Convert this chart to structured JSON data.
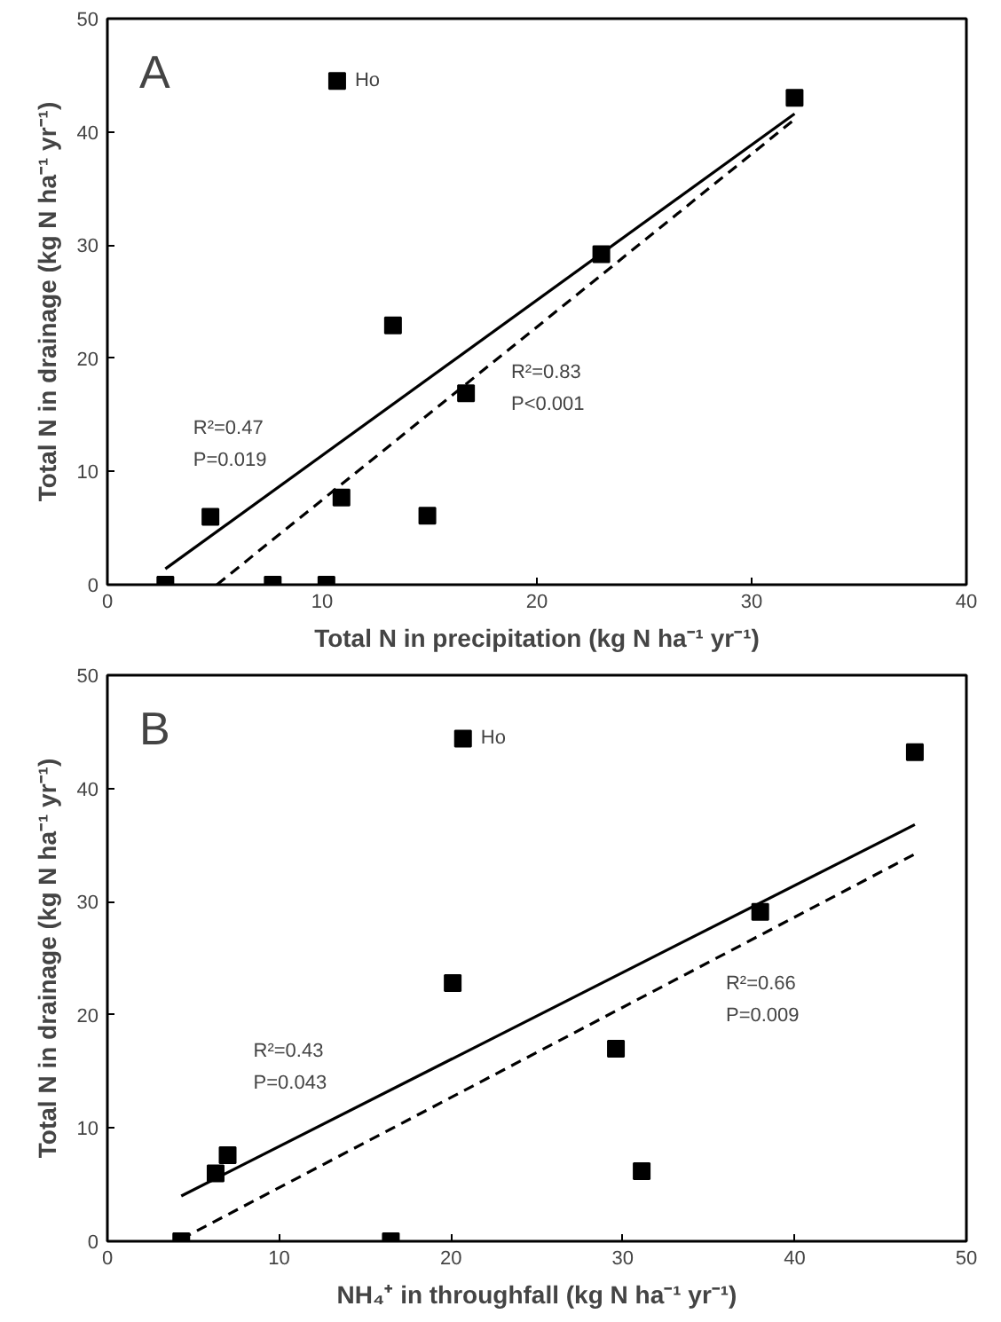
{
  "chart_data": [
    {
      "type": "scatter",
      "title": "A",
      "xlabel": "Total N in precipitation (kg N ha⁻¹ yr⁻¹)",
      "ylabel": "Total N in drainage (kg N ha⁻¹ yr⁻¹)",
      "xlim": [
        0,
        40
      ],
      "ylim": [
        0,
        50
      ],
      "xticks": [
        0,
        10,
        20,
        30,
        40
      ],
      "yticks": [
        0,
        10,
        20,
        30,
        40,
        50
      ],
      "grid": false,
      "marker": "square",
      "series": [
        {
          "color": "#000000",
          "x": [
            2.7,
            4.8,
            7.7,
            10.2,
            10.7,
            10.9,
            13.3,
            14.9,
            16.7,
            23.0,
            32.0
          ],
          "values": [
            0,
            6.0,
            0,
            0,
            44.5,
            7.7,
            22.9,
            6.1,
            16.9,
            29.2,
            43.0
          ]
        },
        {
          "type": "line",
          "color": "#000000",
          "line_style": "solid",
          "marker": "none",
          "x": [
            2.7,
            32.0
          ],
          "values": [
            1.4,
            41.6
          ]
        },
        {
          "type": "line",
          "color": "#000000",
          "line_style": "dashed",
          "marker": "none",
          "x": [
            5.1,
            32.0
          ],
          "values": [
            0,
            41.1
          ]
        }
      ],
      "annotations": [
        {
          "text": "Ho",
          "x": 10.7,
          "y": 44.5
        },
        "R²=0.47\nP=0.019",
        "R²=0.83\nP<0.001"
      ]
    },
    {
      "type": "scatter",
      "title": "B",
      "xlabel": "NH₄⁺ in throughfall (kg N ha⁻¹ yr⁻¹)",
      "ylabel": "Total N in drainage (kg N ha⁻¹ yr⁻¹)",
      "xlim": [
        0,
        50
      ],
      "ylim": [
        0,
        50
      ],
      "xticks": [
        0,
        10,
        20,
        30,
        40,
        50
      ],
      "yticks": [
        0,
        10,
        20,
        30,
        40,
        50
      ],
      "grid": false,
      "marker": "square",
      "series": [
        {
          "color": "#000000",
          "x": [
            4.3,
            6.3,
            7.0,
            16.5,
            20.1,
            20.7,
            29.6,
            31.1,
            38.0,
            47.0
          ],
          "values": [
            0,
            6.0,
            7.6,
            0,
            22.8,
            44.4,
            17.0,
            6.2,
            29.1,
            43.2
          ]
        },
        {
          "type": "line",
          "color": "#000000",
          "line_style": "solid",
          "marker": "none",
          "x": [
            4.3,
            47.0
          ],
          "values": [
            4.0,
            36.8
          ]
        },
        {
          "type": "line",
          "color": "#000000",
          "line_style": "dashed",
          "marker": "none",
          "x": [
            4.3,
            47.0
          ],
          "values": [
            0.2,
            34.2
          ]
        }
      ],
      "annotations": [
        {
          "text": "Ho",
          "x": 20.7,
          "y": 44.4
        },
        "R²=0.43\nP=0.043",
        "R²=0.66\nP=0.009"
      ]
    }
  ]
}
